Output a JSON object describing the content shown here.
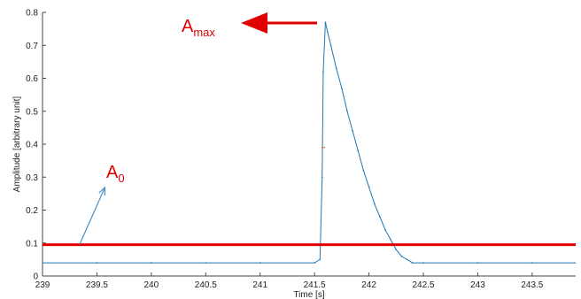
{
  "chart_data": {
    "type": "line",
    "title": "",
    "xlabel": "Time [s]",
    "ylabel": "Amplitude [arbitrary unit]",
    "xlim": [
      239,
      243.9
    ],
    "ylim": [
      0,
      0.8
    ],
    "grid": false,
    "legend": "none",
    "x_ticks": [
      "239",
      "239.5",
      "240",
      "240.5",
      "241",
      "241.5",
      "242",
      "242.5",
      "243",
      "243.5"
    ],
    "y_ticks": [
      "0",
      "0.1",
      "0.2",
      "0.3",
      "0.4",
      "0.5",
      "0.6",
      "0.7",
      "0.8"
    ],
    "series": [
      {
        "color": "#1f77b4",
        "x": [
          239.0,
          239.5,
          240.0,
          240.5,
          241.0,
          241.5,
          241.55,
          241.57,
          241.58,
          241.6,
          241.62,
          241.65,
          241.7,
          241.75,
          241.8,
          241.85,
          241.9,
          241.95,
          242.0,
          242.05,
          242.1,
          242.15,
          242.2,
          242.25,
          242.3,
          242.35,
          242.4,
          242.5,
          243.0,
          243.5,
          243.9
        ],
        "y": [
          0.04,
          0.04,
          0.04,
          0.04,
          0.04,
          0.04,
          0.05,
          0.3,
          0.62,
          0.77,
          0.74,
          0.7,
          0.63,
          0.57,
          0.5,
          0.44,
          0.38,
          0.32,
          0.27,
          0.22,
          0.18,
          0.14,
          0.11,
          0.08,
          0.06,
          0.05,
          0.04,
          0.04,
          0.04,
          0.04,
          0.04
        ]
      },
      {
        "color": "#e00000",
        "x": [
          239.0,
          243.9
        ],
        "y": [
          0.095,
          0.095
        ]
      }
    ],
    "markers": [
      {
        "x": 241.58,
        "y": 0.39,
        "color": "#e06020"
      }
    ],
    "annotations": {
      "amax": {
        "base": "A",
        "sub": "max",
        "color": "#e00000"
      },
      "a0": {
        "base": "A",
        "sub": "0",
        "color": "#e00000"
      }
    }
  }
}
